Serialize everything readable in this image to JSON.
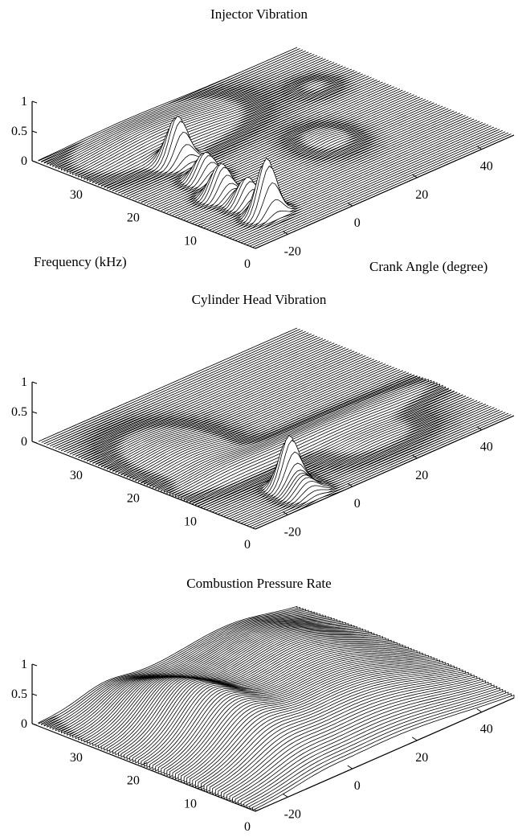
{
  "figure": {
    "type": "3d-waterfall",
    "x_label": "Frequency (kHz)",
    "y_label": "Crank Angle (degree)",
    "z_ticks": [
      "0",
      "0.5",
      "1"
    ],
    "freq_ticks": [
      "0",
      "10",
      "20",
      "30"
    ],
    "crank_ticks": [
      "-20",
      "0",
      "20",
      "40"
    ]
  },
  "chart_data": [
    {
      "type": "surface",
      "title": "Injector Vibration",
      "zlim": [
        0,
        1
      ],
      "xlim_freq_khz": [
        0,
        38
      ],
      "ylim_crank_deg": [
        -30,
        50
      ],
      "peaks": [
        {
          "freq": 32,
          "crank": -4,
          "z": 0.15,
          "sf": 4,
          "sc": 14
        },
        {
          "freq": 25,
          "crank": -10,
          "z": 0.75,
          "sf": 1.2,
          "sc": 2.5
        },
        {
          "freq": 19,
          "crank": -12,
          "z": 0.45,
          "sf": 1.2,
          "sc": 2.5
        },
        {
          "freq": 14,
          "crank": -16,
          "z": 0.55,
          "sf": 1.2,
          "sc": 2.5
        },
        {
          "freq": 10,
          "crank": -15,
          "z": 0.45,
          "sf": 1.0,
          "sc": 2.5
        },
        {
          "freq": 6,
          "crank": -16,
          "z": 0.95,
          "sf": 1.0,
          "sc": 2.5
        },
        {
          "freq": 16,
          "crank": 20,
          "z": 0.06,
          "sf": 3,
          "sc": 5
        },
        {
          "freq": 28,
          "crank": 38,
          "z": 0.04,
          "sf": 2,
          "sc": 4
        }
      ]
    },
    {
      "type": "surface",
      "title": "Cylinder Head Vibration",
      "zlim": [
        0,
        1
      ],
      "xlim_freq_khz": [
        0,
        38
      ],
      "ylim_crank_deg": [
        -30,
        50
      ],
      "peaks": [
        {
          "freq": 6,
          "crank": -9,
          "z": 0.8,
          "sf": 1.0,
          "sc": 2.5
        },
        {
          "freq": 3,
          "crank": -10,
          "z": 0.3,
          "sf": 1.5,
          "sc": 3
        },
        {
          "freq": 22,
          "crank": -14,
          "z": 0.1,
          "sf": 6,
          "sc": 8
        },
        {
          "freq": 14,
          "crank": 12,
          "z": 0.1,
          "sf": 2,
          "sc": 25
        },
        {
          "freq": 8,
          "crank": 20,
          "z": 0.06,
          "sf": 3,
          "sc": 10
        }
      ]
    },
    {
      "type": "surface",
      "title": "Combustion Pressure Rate",
      "zlim": [
        0,
        1
      ],
      "xlim_freq_khz": [
        0,
        38
      ],
      "ylim_crank_deg": [
        -30,
        50
      ],
      "peaks": [
        {
          "freq": 22,
          "crank": -10,
          "z": 0.55,
          "sf": 10,
          "sc": 7
        },
        {
          "freq": 18,
          "crank": 12,
          "z": 0.45,
          "sf": 12,
          "sc": 20
        },
        {
          "freq": 28,
          "crank": 30,
          "z": 0.3,
          "sf": 10,
          "sc": 12
        },
        {
          "freq": 8,
          "crank": 10,
          "z": 0.2,
          "sf": 6,
          "sc": 25
        }
      ]
    }
  ]
}
